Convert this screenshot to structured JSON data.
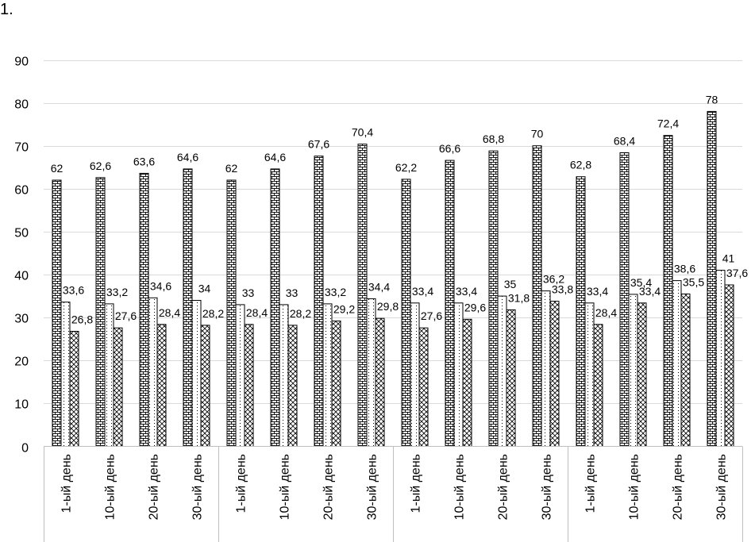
{
  "page": {
    "corner_text": "1."
  },
  "chart_data": {
    "type": "bar",
    "title": "",
    "xlabel": "",
    "ylabel": "",
    "ylim": [
      0,
      90
    ],
    "yticks": [
      0,
      10,
      20,
      30,
      40,
      50,
      60,
      70,
      80,
      90
    ],
    "grid": "horizontal",
    "legend": "none",
    "categories": [
      "1-ый день",
      "10-ый день",
      "20-ый день",
      "30-ый день",
      "1-ый день",
      "10-ый день",
      "20-ый день",
      "30-ый день",
      "1-ый день",
      "10-ый день",
      "20-ый день",
      "30-ый день",
      "1-ый день",
      "10-ый день",
      "20-ый день",
      "30-ый день"
    ],
    "group_size": 4,
    "series": [
      {
        "pattern": "brick",
        "values": [
          62,
          62.6,
          63.6,
          64.6,
          62,
          64.6,
          67.6,
          70.4,
          62.2,
          66.6,
          68.8,
          70,
          62.8,
          68.4,
          72.4,
          78
        ],
        "labels": [
          "62",
          "62,6",
          "63,6",
          "64,6",
          "62",
          "64,6",
          "67,6",
          "70,4",
          "62,2",
          "66,6",
          "68,8",
          "70",
          "62,8",
          "68,4",
          "72,4",
          "78"
        ]
      },
      {
        "pattern": "dotted",
        "values": [
          33.6,
          33.2,
          34.6,
          34,
          33,
          33,
          33.2,
          34.4,
          33.4,
          33.4,
          35,
          36.2,
          33.4,
          35.4,
          38.6,
          41
        ],
        "labels": [
          "33,6",
          "33,2",
          "34,6",
          "34",
          "33",
          "33",
          "33,2",
          "34,4",
          "33,4",
          "33,4",
          "35",
          "36,2",
          "33,4",
          "35,4",
          "38,6",
          "41"
        ]
      },
      {
        "pattern": "crosshatch",
        "values": [
          26.8,
          27.6,
          28.4,
          28.2,
          28.4,
          28.2,
          29.2,
          29.8,
          27.6,
          29.6,
          31.8,
          33.8,
          28.4,
          33.4,
          35.5,
          37.6
        ],
        "labels": [
          "26,8",
          "27,6",
          "28,4",
          "28,2",
          "28,4",
          "28,2",
          "29,2",
          "29,8",
          "27,6",
          "29,6",
          "31,8",
          "33,8",
          "28,4",
          "33,4",
          "35,5",
          "37,6"
        ]
      }
    ],
    "colors": {
      "gridline": "#d9d9d9",
      "bar_stroke": "#000000",
      "bar_fill": "#ffffff",
      "pattern_ink": "#000000"
    }
  }
}
